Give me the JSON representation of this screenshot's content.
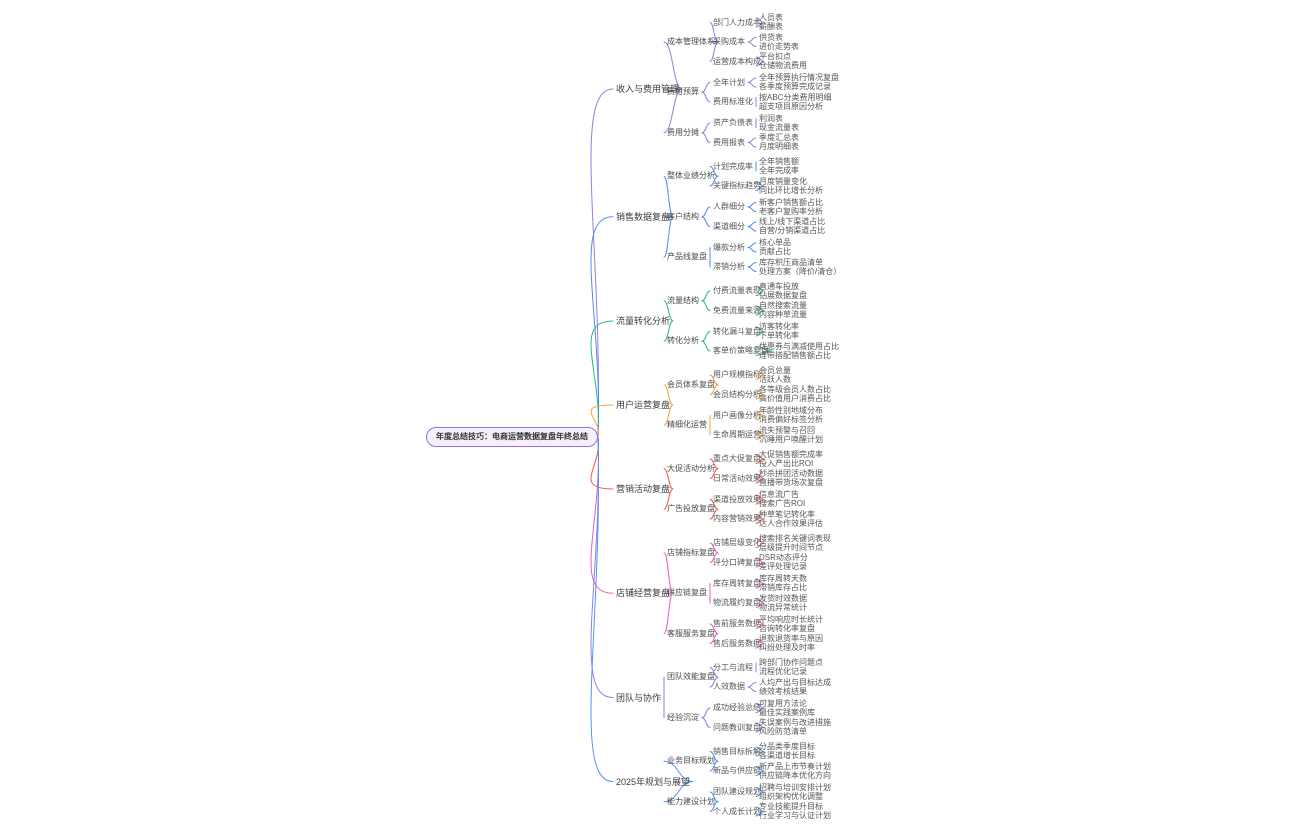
{
  "mindmap": {
    "root": "年度总结技巧：电商运营数据复盘年终总结",
    "root_style": {
      "border": "#9a6ee0",
      "fill": "#f5f0fd",
      "text": "#333333"
    },
    "branches": [
      {
        "label": "收入与费用管理",
        "color": "#9b7be0",
        "children": [
          {
            "label": "成本管理体系",
            "children": [
              {
                "label": "部门人力成本",
                "children": [
                  "人员表",
                  "薪酬表"
                ]
              },
              {
                "label": "采购成本",
                "children": [
                  "供货表",
                  "进价走势表"
                ]
              },
              {
                "label": "运营成本构成",
                "children": [
                  "平台扣点",
                  "仓储物流费用"
                ]
              }
            ]
          },
          {
            "label": "费用预算",
            "children": [
              {
                "label": "全年计划",
                "children": [
                  "全年预算执行情况复盘",
                  "各季度预算完成记录"
                ]
              },
              {
                "label": "费用标准化",
                "children": [
                  "按ABC分类费用明细",
                  "超支项目原因分析"
                ]
              }
            ]
          },
          {
            "label": "费用分摊",
            "children": [
              {
                "label": "资产负债表",
                "children": [
                  "利润表",
                  "现金流量表"
                ]
              },
              {
                "label": "费用报表",
                "children": [
                  "季度汇总表",
                  "月度明细表"
                ]
              }
            ]
          }
        ]
      },
      {
        "label": "销售数据复盘",
        "color": "#4d8bf0",
        "children": [
          {
            "label": "整体业绩分析",
            "children": [
              {
                "label": "计划完成率",
                "children": [
                  "全年销售额",
                  "全年完成率"
                ]
              },
              {
                "label": "关键指标趋势",
                "children": [
                  "月度销量变化",
                  "同比环比增长分析"
                ]
              }
            ]
          },
          {
            "label": "客户结构",
            "children": [
              {
                "label": "人群细分",
                "children": [
                  "新客户销售额占比",
                  "老客户复购率分析"
                ]
              },
              {
                "label": "渠道细分",
                "children": [
                  "线上/线下渠道占比",
                  "自营/分销渠道占比"
                ]
              }
            ]
          },
          {
            "label": "产品线复盘",
            "children": [
              {
                "label": "爆款分析",
                "children": [
                  "核心单品",
                  "贡献占比"
                ]
              },
              {
                "label": "滞销分析",
                "children": [
                  "库存积压商品清单",
                  "处理方案（降价/清仓）"
                ]
              }
            ]
          }
        ]
      },
      {
        "label": "流量转化分析",
        "color": "#2db77e",
        "children": [
          {
            "label": "流量结构",
            "children": [
              {
                "label": "付费流量表现",
                "children": [
                  "直通车投放",
                  "钻展数据复盘"
                ]
              },
              {
                "label": "免费流量来源",
                "children": [
                  "自然搜索流量",
                  "内容种草流量"
                ]
              }
            ]
          },
          {
            "label": "转化分析",
            "children": [
              {
                "label": "转化漏斗复盘",
                "children": [
                  "访客转化率",
                  "下单转化率"
                ]
              },
              {
                "label": "客单价策略复盘",
                "children": [
                  "优惠券与满减使用占比",
                  "连带搭配销售额占比"
                ]
              }
            ]
          }
        ]
      },
      {
        "label": "用户运营复盘",
        "color": "#f0a33c",
        "children": [
          {
            "label": "会员体系复盘",
            "children": [
              {
                "label": "用户规模指标",
                "children": [
                  "会员总量",
                  "活跃人数"
                ]
              },
              {
                "label": "会员结构分析",
                "children": [
                  "各等级会员人数占比",
                  "高价值用户消费占比"
                ]
              }
            ]
          },
          {
            "label": "精细化运营",
            "children": [
              {
                "label": "用户画像分析",
                "children": [
                  "年龄性别地域分布",
                  "消费偏好标签分析"
                ]
              },
              {
                "label": "生命周期运营",
                "children": [
                  "流失预警与召回",
                  "沉睡用户唤醒计划"
                ]
              }
            ]
          }
        ]
      },
      {
        "label": "营销活动复盘",
        "color": "#f15b50",
        "children": [
          {
            "label": "大促活动分析",
            "children": [
              {
                "label": "重点大促复盘",
                "children": [
                  "大促销售额完成率",
                  "投入产出比ROI"
                ]
              },
              {
                "label": "日常活动效果",
                "children": [
                  "秒杀拼团活动数据",
                  "直播带货场次复盘"
                ]
              }
            ]
          },
          {
            "label": "广告投放复盘",
            "children": [
              {
                "label": "渠道投放效果",
                "children": [
                  "信息流广告",
                  "搜索广告ROI"
                ]
              },
              {
                "label": "内容营销效果",
                "children": [
                  "种草笔记转化率",
                  "达人合作效果评估"
                ]
              }
            ]
          }
        ]
      },
      {
        "label": "店铺经营复盘",
        "color": "#e95cc3",
        "children": [
          {
            "label": "店铺指标复盘",
            "children": [
              {
                "label": "店铺层级变化",
                "children": [
                  "搜索排名关键词表现",
                  "层级提升时间节点"
                ]
              },
              {
                "label": "评分口碑复盘",
                "children": [
                  "DSR动态评分",
                  "差评处理记录"
                ]
              }
            ]
          },
          {
            "label": "供应链复盘",
            "children": [
              {
                "label": "库存周转复盘",
                "children": [
                  "库存周转天数",
                  "滞销库存占比"
                ]
              },
              {
                "label": "物流履约复盘",
                "children": [
                  "发货时效数据",
                  "物流异常统计"
                ]
              }
            ]
          },
          {
            "label": "客服服务复盘",
            "children": [
              {
                "label": "售前服务数据",
                "children": [
                  "平均响应时长统计",
                  "咨询转化率复盘"
                ]
              },
              {
                "label": "售后服务数据",
                "children": [
                  "退款退货率与原因",
                  "纠纷处理及时率"
                ]
              }
            ]
          }
        ]
      },
      {
        "label": "团队与协作",
        "color": "#8f7cec",
        "children": [
          {
            "label": "团队效能复盘",
            "children": [
              {
                "label": "分工与流程",
                "children": [
                  "跨部门协作问题点",
                  "流程优化记录"
                ]
              },
              {
                "label": "人效数据",
                "children": [
                  "人均产出与目标达成",
                  "绩效考核结果"
                ]
              }
            ]
          },
          {
            "label": "经验沉淀",
            "children": [
              {
                "label": "成功经验总结",
                "children": [
                  "可复用方法论",
                  "最佳实践案例库"
                ]
              },
              {
                "label": "问题教训复盘",
                "children": [
                  "失误案例与改进措施",
                  "风险防范清单"
                ]
              }
            ]
          }
        ]
      },
      {
        "label": "2025年规划与展望",
        "color": "#4f96f5",
        "children": [
          {
            "label": "业务目标规划",
            "children": [
              {
                "label": "销售目标拆解",
                "children": [
                  "分品类季度目标",
                  "各渠道增长目标"
                ]
              },
              {
                "label": "新品与供应链",
                "children": [
                  "新产品上市节奏计划",
                  "供应链降本优化方向"
                ]
              }
            ]
          },
          {
            "label": "能力建设计划",
            "children": [
              {
                "label": "团队建设规划",
                "children": [
                  "招聘与培训安排计划",
                  "组织架构优化调整"
                ]
              },
              {
                "label": "个人成长计划",
                "children": [
                  "专业技能提升目标",
                  "行业学习与认证计划"
                ]
              }
            ]
          }
        ]
      }
    ]
  }
}
